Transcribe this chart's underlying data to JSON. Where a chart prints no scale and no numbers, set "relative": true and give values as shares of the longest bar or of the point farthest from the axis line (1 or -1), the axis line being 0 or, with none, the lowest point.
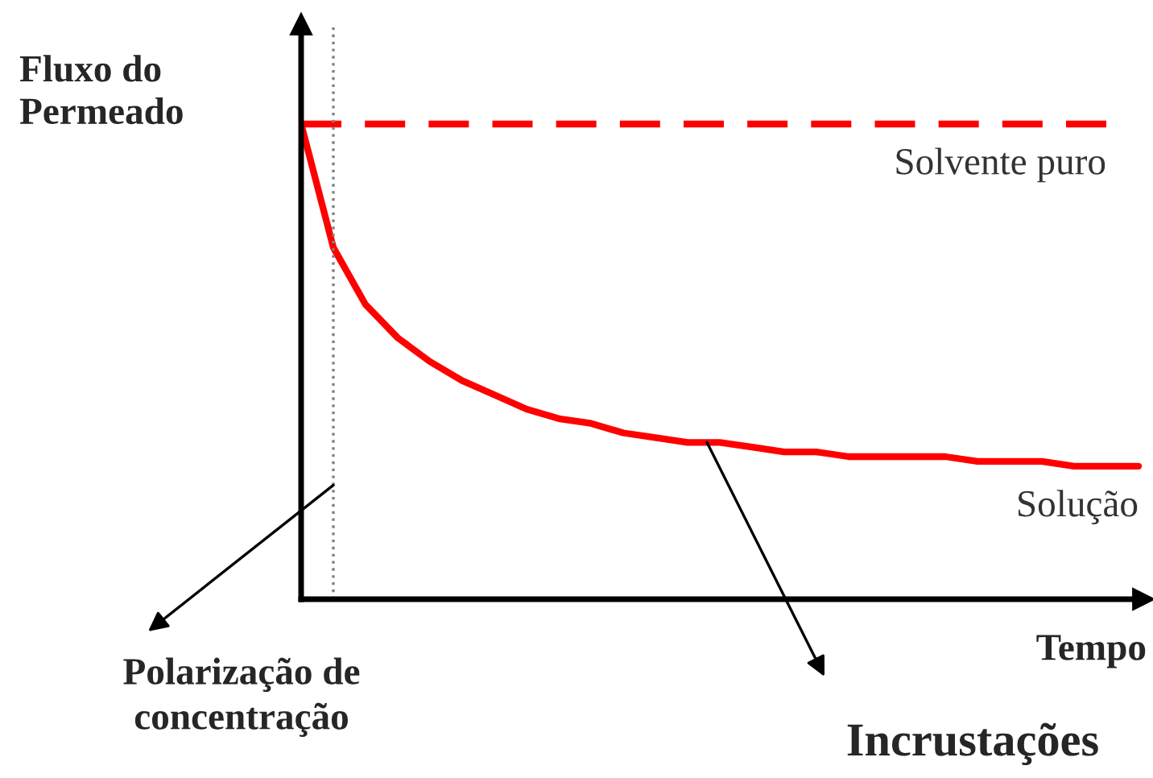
{
  "chart_data": {
    "type": "line",
    "relative": true,
    "ylabel": "Fluxo do\nPermeado",
    "xlabel": "Tempo",
    "categories": [
      null,
      null,
      null,
      null,
      null,
      null,
      null,
      null,
      null,
      null,
      null,
      null,
      null,
      null,
      null,
      null,
      null,
      null,
      null,
      null,
      null,
      null,
      null,
      null,
      null,
      null,
      null
    ],
    "series": [
      {
        "name": "Solvente puro",
        "color": "#ff0000",
        "line_style": "dashed",
        "values": [
          1,
          1,
          1,
          1,
          1,
          1,
          1,
          1,
          1,
          1,
          1,
          1,
          1,
          1,
          1,
          1,
          1,
          1,
          1,
          1,
          1,
          1,
          1,
          1,
          1,
          1,
          null
        ]
      },
      {
        "name": "Solução",
        "color": "#ff0000",
        "line_style": "solid",
        "values": [
          1,
          0.74,
          0.62,
          0.55,
          0.5,
          0.46,
          0.43,
          0.4,
          0.38,
          0.37,
          0.35,
          0.34,
          0.33,
          0.33,
          0.32,
          0.31,
          0.31,
          0.3,
          0.3,
          0.3,
          0.3,
          0.29,
          0.29,
          0.29,
          0.28,
          0.28,
          0.28
        ]
      }
    ],
    "annotations": [
      {
        "text": "Polarização de\nconcentração"
      },
      {
        "text": "Incrustações"
      }
    ],
    "tick_labels": false,
    "marker": "none"
  }
}
